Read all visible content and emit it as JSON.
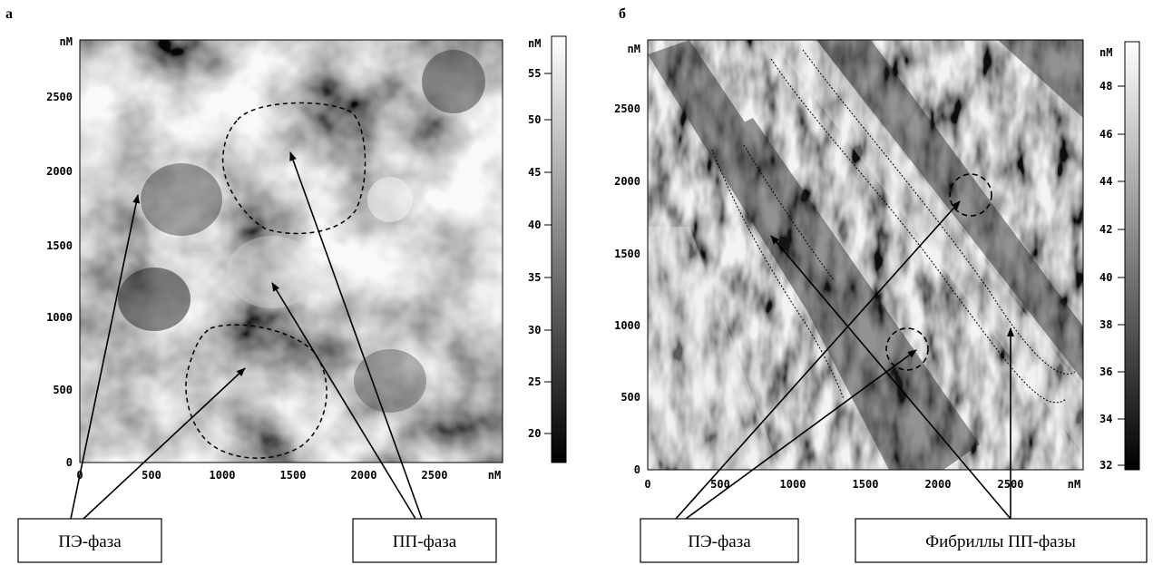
{
  "panels": [
    {
      "letter": "а",
      "axis_unit": "nM",
      "x_ticks": [
        "0",
        "500",
        "1000",
        "1500",
        "2000",
        "2500"
      ],
      "y_ticks": [
        "0",
        "500",
        "1000",
        "1500",
        "2000",
        "2500"
      ],
      "scale_ticks": [
        "20",
        "25",
        "30",
        "35",
        "40",
        "45",
        "50",
        "55"
      ],
      "labels": [
        "ПЭ-фаза",
        "ПП-фаза"
      ]
    },
    {
      "letter": "б",
      "axis_unit": "nM",
      "x_ticks": [
        "0",
        "500",
        "1000",
        "1500",
        "2000",
        "2500"
      ],
      "y_ticks": [
        "0",
        "500",
        "1000",
        "1500",
        "2000",
        "2500"
      ],
      "scale_ticks": [
        "32",
        "34",
        "36",
        "38",
        "40",
        "42",
        "44",
        "46",
        "48"
      ],
      "labels": [
        "ПЭ-фаза",
        "Фибриллы ПП-фазы"
      ]
    }
  ]
}
